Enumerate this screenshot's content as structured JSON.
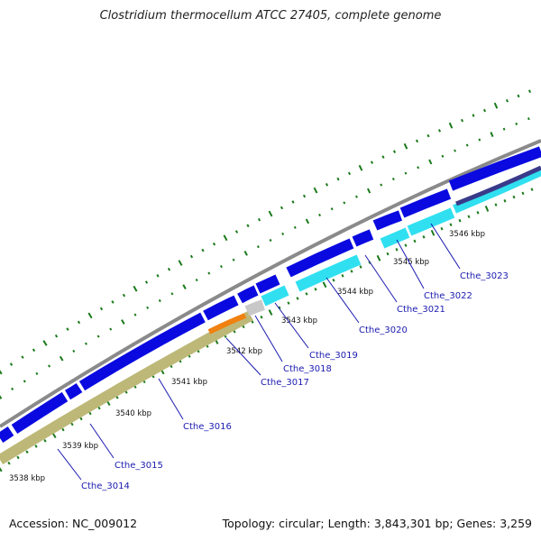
{
  "title": "Clostridium thermocellum ATCC 27405, complete genome",
  "footer": {
    "accession": "Accession: NC_009012",
    "summary": "Topology: circular; Length: 3,843,301 bp; Genes: 3,259"
  },
  "kbp_ticks": [
    "3538 kbp",
    "3539 kbp",
    "3540 kbp",
    "3541 kbp",
    "3542 kbp",
    "3543 kbp",
    "3544 kbp",
    "3545 kbp",
    "3546 kbp"
  ],
  "genes": [
    "Cthe_3014",
    "Cthe_3015",
    "Cthe_3016",
    "Cthe_3017",
    "Cthe_3018",
    "Cthe_3019",
    "Cthe_3020",
    "Cthe_3021",
    "Cthe_3022",
    "Cthe_3023"
  ],
  "colors": {
    "backbone": "#8a8a8a",
    "forward_cds": "#0a0ae0",
    "reverse_cds": "#30e0f0",
    "reverse_dark": "#3a3a8a",
    "khaki_track": "#bdb878",
    "orange_feature": "#f08010",
    "grey_feature": "#c8c8c8",
    "dot_track": "#1a7a1a"
  }
}
